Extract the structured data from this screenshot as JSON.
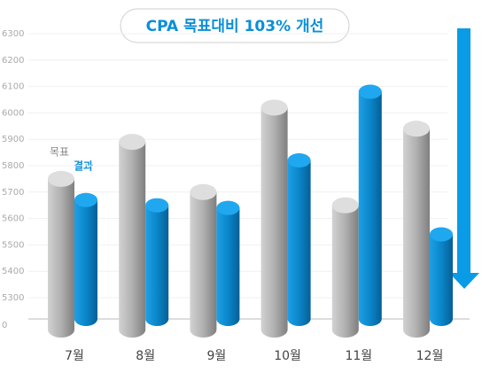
{
  "chart_data": {
    "type": "bar",
    "title": "CPA 목표대비 103% 개선",
    "categories": [
      "7월",
      "8월",
      "9월",
      "10월",
      "11월",
      "12월"
    ],
    "series": [
      {
        "name": "목표",
        "color": "#a8a8a8",
        "values": [
          5750,
          5890,
          5700,
          6020,
          5650,
          5940
        ]
      },
      {
        "name": "결과",
        "color": "#0a8fd8",
        "values": [
          5670,
          5650,
          5640,
          5820,
          6080,
          5540
        ]
      }
    ],
    "ylim": [
      0,
      6300
    ],
    "yticks": [
      0,
      5300,
      5400,
      5500,
      5600,
      5700,
      5800,
      5900,
      6000,
      6100,
      6200,
      6300
    ],
    "grid": true
  }
}
